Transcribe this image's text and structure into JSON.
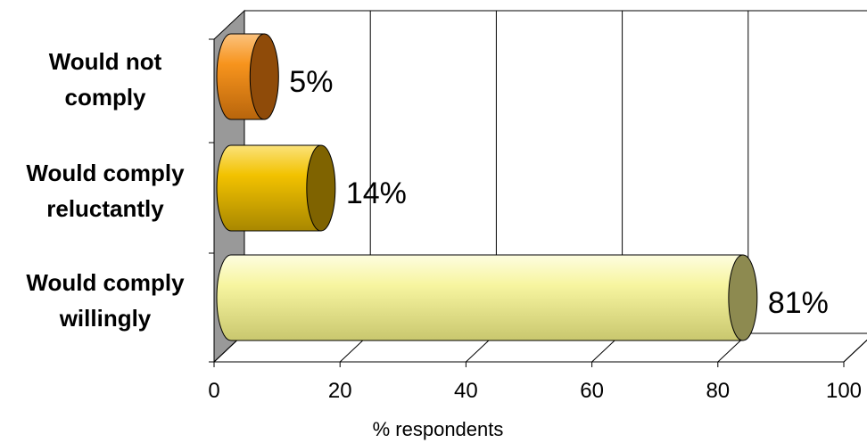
{
  "chart_data": {
    "type": "bar",
    "orientation": "horizontal",
    "style": "3d-cylinder",
    "categories": [
      [
        "Would not",
        "comply"
      ],
      [
        "Would comply",
        "reluctantly"
      ],
      [
        "Would comply",
        "willingly"
      ]
    ],
    "values": [
      5,
      14,
      81
    ],
    "data_labels": [
      "5%",
      "14%",
      "81%"
    ],
    "bar_colors": [
      "#f7941d",
      "#f2c200",
      "#f7f5a0"
    ],
    "end_colors": [
      "#8f4b09",
      "#7f6300",
      "#8d8a50"
    ],
    "xlabel": "% respondents",
    "ylabel": "",
    "title": "",
    "xlim": [
      0,
      100
    ],
    "xticks": [
      "0",
      "20",
      "40",
      "60",
      "80",
      "100"
    ],
    "grid": true,
    "legend": "none"
  }
}
